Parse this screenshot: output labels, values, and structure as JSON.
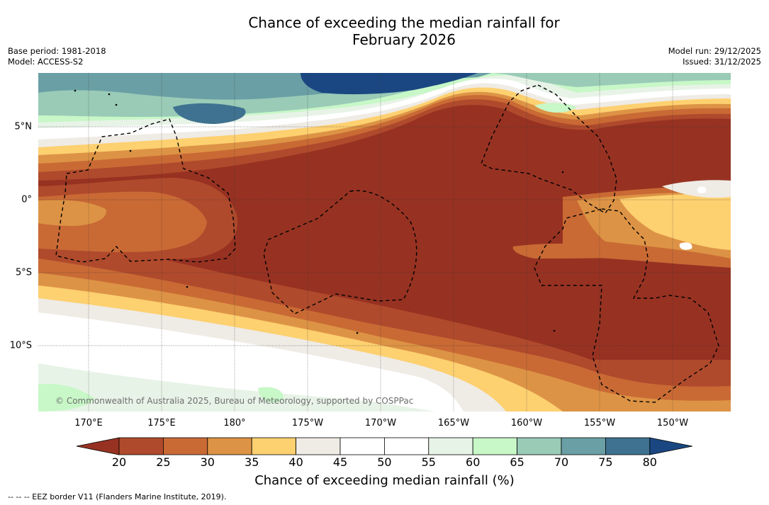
{
  "title": {
    "line1": "Chance of exceeding the median rainfall for",
    "line2": "February 2026"
  },
  "meta": {
    "base_period": "Base period: 1981-2018",
    "model": "Model: ACCESS-S2",
    "model_run": "Model run: 29/12/2025",
    "issued": "Issued: 31/12/2025"
  },
  "map": {
    "copyright": "© Commonwealth of Australia 2025, Bureau of Meteorology, supported by COSPPac",
    "longitude_labels": [
      "170°E",
      "175°E",
      "180°",
      "175°W",
      "170°W",
      "165°W",
      "160°W",
      "155°W",
      "150°W"
    ],
    "latitude_labels": [
      "5°N",
      "0°",
      "5°S",
      "10°S"
    ]
  },
  "colorbar": {
    "ticks": [
      "20",
      "25",
      "30",
      "35",
      "40",
      "45",
      "50",
      "55",
      "60",
      "65",
      "70",
      "75",
      "80"
    ],
    "colors": [
      "#973222",
      "#b04a2c",
      "#c96a35",
      "#dd9345",
      "#fdd070",
      "#efebe5",
      "#ffffff",
      "#ffffff",
      "#e8f3e7",
      "#c8f7c8",
      "#99cbb7",
      "#6a9fa5",
      "#3f7290",
      "#1a4782"
    ],
    "label": "Chance of exceeding median rainfall (%)"
  },
  "footnote": "--  --  -- EEZ border V11 (Flanders Marine Institute, 2019)."
}
